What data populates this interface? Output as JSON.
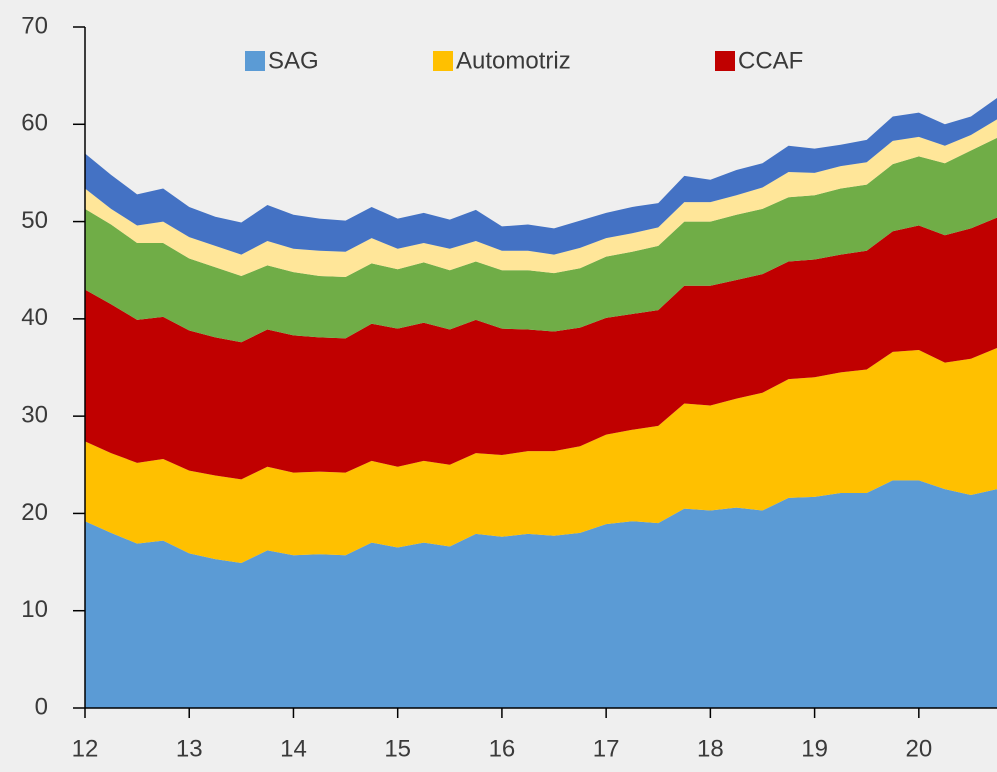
{
  "chart_data": {
    "type": "stacked_area",
    "x": [
      12,
      12.25,
      12.5,
      12.75,
      13,
      13.25,
      13.5,
      13.75,
      14,
      14.25,
      14.5,
      14.75,
      15,
      15.25,
      15.5,
      15.75,
      16,
      16.25,
      16.5,
      16.75,
      17,
      17.25,
      17.5,
      17.75,
      18,
      18.25,
      18.5,
      18.75,
      19,
      19.25,
      19.5,
      19.75,
      20,
      20.25,
      20.5,
      20.75
    ],
    "series": [
      {
        "name": "SAG",
        "color": "#5b9bd5",
        "values": [
          19.2,
          18,
          16.9,
          17.2,
          15.9,
          15.3,
          14.9,
          16.2,
          15.7,
          15.8,
          15.7,
          17,
          16.5,
          17,
          16.6,
          17.9,
          17.6,
          17.9,
          17.7,
          18,
          18.9,
          19.2,
          19,
          20.5,
          20.3,
          20.6,
          20.3,
          21.6,
          21.7,
          22.1,
          22.1,
          23.4,
          23.4,
          22.5,
          21.9,
          22.5
        ]
      },
      {
        "name": "Automotriz",
        "color": "#ffc000",
        "values": [
          8.2,
          8.2,
          8.3,
          8.4,
          8.5,
          8.6,
          8.6,
          8.6,
          8.5,
          8.5,
          8.5,
          8.4,
          8.3,
          8.4,
          8.4,
          8.3,
          8.4,
          8.5,
          8.7,
          8.9,
          9.2,
          9.4,
          10,
          10.8,
          10.8,
          11.2,
          12.1,
          12.2,
          12.3,
          12.4,
          12.7,
          13.2,
          13.4,
          13,
          14,
          14.5
        ]
      },
      {
        "name": "CCAF",
        "color": "#c00000",
        "values": [
          15.6,
          15.3,
          14.7,
          14.6,
          14.4,
          14.2,
          14.1,
          14.1,
          14.1,
          13.8,
          13.8,
          14.1,
          14.2,
          14.2,
          13.9,
          13.7,
          13,
          12.5,
          12.3,
          12.2,
          12,
          11.9,
          11.9,
          12.1,
          12.3,
          12.2,
          12.2,
          12.1,
          12.1,
          12.1,
          12.2,
          12.4,
          12.8,
          13.1,
          13.4,
          13.4
        ]
      },
      {
        "color": "#70ad47",
        "values": [
          8.3,
          8.2,
          7.9,
          7.6,
          7.4,
          7.2,
          6.8,
          6.6,
          6.5,
          6.3,
          6.3,
          6.2,
          6.1,
          6.2,
          6.1,
          6,
          6,
          6.1,
          6,
          6.1,
          6.3,
          6.4,
          6.6,
          6.6,
          6.6,
          6.7,
          6.7,
          6.6,
          6.6,
          6.8,
          6.8,
          6.9,
          7.1,
          7.4,
          8,
          8.2
        ]
      },
      {
        "color": "#ffe699",
        "values": [
          2.1,
          1.6,
          1.8,
          2.2,
          2.2,
          2.2,
          2.2,
          2.5,
          2.4,
          2.6,
          2.6,
          2.6,
          2.1,
          2,
          2.2,
          2.1,
          2,
          2,
          1.9,
          2.1,
          1.9,
          1.9,
          1.9,
          2,
          2,
          2,
          2.2,
          2.6,
          2.3,
          2.3,
          2.3,
          2.4,
          2,
          1.8,
          1.6,
          1.9
        ]
      },
      {
        "color": "#4472c4",
        "values": [
          3.6,
          3.5,
          3.2,
          3.4,
          3.1,
          3,
          3.3,
          3.7,
          3.5,
          3.3,
          3.2,
          3.2,
          3.1,
          3.1,
          3,
          3.2,
          2.5,
          2.7,
          2.7,
          2.8,
          2.6,
          2.7,
          2.5,
          2.7,
          2.3,
          2.6,
          2.5,
          2.7,
          2.5,
          2.2,
          2.3,
          2.5,
          2.5,
          2.2,
          1.9,
          2.2
        ]
      }
    ],
    "xlim": [
      12,
      20.75
    ],
    "xticks": [
      12,
      13,
      14,
      15,
      16,
      17,
      18,
      19,
      20
    ],
    "ylim": [
      0,
      70
    ],
    "yticks": [
      0,
      10,
      20,
      30,
      40,
      50,
      60,
      70
    ],
    "grid": false,
    "legend": "top"
  }
}
